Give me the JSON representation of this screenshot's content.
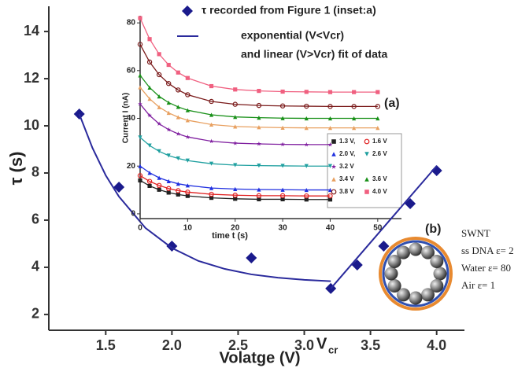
{
  "chart_data": {
    "type": "scatter",
    "x_label": "Volatge (V)",
    "y_label": "τ (s)",
    "xlim": [
      1.07,
      4.21
    ],
    "ylim": [
      1.33,
      15.07
    ],
    "xticks": [
      1.5,
      {
        "value": 2,
        "label": "2.0"
      },
      2.5,
      {
        "value": 3,
        "label": "3.0"
      },
      3.5,
      {
        "value": 4,
        "label": "4.0"
      }
    ],
    "yticks": [
      2,
      4,
      6,
      8,
      10,
      12,
      14
    ],
    "series": [
      {
        "name": "τ recorded from Figure 1 (inset:a)",
        "color": "#1a1a8c",
        "marker": "diamond",
        "x": [
          1.3,
          1.6,
          2.0,
          2.6,
          3.2,
          3.4,
          3.6,
          3.8,
          4.0
        ],
        "values": [
          10.5,
          7.4,
          4.9,
          4.4,
          3.1,
          4.1,
          4.9,
          6.7,
          8.1
        ]
      },
      {
        "name": "exponential (V<Vcr)",
        "color": "#2a2a9c",
        "marker": "line",
        "x": [
          1.3,
          1.4,
          1.5,
          1.6,
          1.8,
          2.0,
          2.2,
          2.4,
          2.6,
          2.8,
          3.0,
          3.2,
          3.2,
          3.2,
          4.0
        ],
        "values": [
          10.5,
          9.06,
          7.9,
          7.0,
          5.67,
          4.82,
          4.27,
          3.93,
          3.7,
          3.56,
          3.47,
          3.41,
          null,
          3.1,
          8.3
        ]
      }
    ],
    "legend_note": "and linear (V>Vcr) fit of data",
    "vcr_label": "V",
    "vcr_sub": "cr",
    "inset": {
      "type": "line",
      "label": "(a)",
      "x_label": "time t (s)",
      "y_label": "Current I (nA)",
      "xlim": [
        0,
        55
      ],
      "ylim": [
        -2,
        83
      ],
      "xticks": [
        0,
        10,
        20,
        30,
        40,
        50
      ],
      "yticks": [
        0,
        20,
        40,
        60,
        80
      ],
      "x": [
        0,
        2,
        4,
        6,
        8,
        10,
        15,
        20,
        25,
        30,
        35,
        40,
        45,
        50
      ],
      "series": [
        {
          "name": "1.3 V,",
          "color": "#222222",
          "marker": "square",
          "values": [
            14,
            11.7,
            10.1,
            8.9,
            8.1,
            7.5,
            6.7,
            6.3,
            6.1,
            6.1,
            6,
            6,
            null,
            null
          ]
        },
        {
          "name": "1.6 V",
          "color": "#e02020",
          "marker": "circle",
          "values": [
            16,
            13.6,
            11.9,
            10.6,
            9.7,
            9.1,
            8.2,
            7.8,
            7.6,
            7.6,
            7.5,
            7.5,
            null,
            null
          ]
        },
        {
          "name": "2.0 V,",
          "color": "#2030e0",
          "marker": "triangle",
          "values": [
            20,
            17.2,
            15.1,
            13.7,
            12.6,
            11.9,
            10.8,
            10.4,
            10.2,
            10.1,
            10,
            10,
            null,
            null
          ]
        },
        {
          "name": "2.6 V",
          "color": "#20a0a0",
          "marker": "dtriangle",
          "values": [
            32,
            28.6,
            26.2,
            24.4,
            23.2,
            22.3,
            21,
            20.4,
            20.2,
            20.1,
            20,
            20,
            null,
            null
          ]
        },
        {
          "name": "3.2 V",
          "color": "#8020a0",
          "marker": "star",
          "values": [
            46,
            41.2,
            37.7,
            35.3,
            33.5,
            32.2,
            30.4,
            29.6,
            29.3,
            29.1,
            29,
            29,
            null,
            null
          ]
        },
        {
          "name": "3.4 V",
          "color": "#e8a060",
          "marker": "triangle",
          "values": [
            53,
            48.2,
            44.7,
            42.3,
            40.5,
            39.2,
            37.4,
            36.6,
            36.3,
            36.1,
            36,
            36,
            36,
            36
          ]
        },
        {
          "name": "3.6 V",
          "color": "#189018",
          "marker": "triangle",
          "values": [
            58,
            52.9,
            49.2,
            46.6,
            44.8,
            43.4,
            41.5,
            40.6,
            40.3,
            40.1,
            40,
            40,
            40,
            40
          ]
        },
        {
          "name": "3.8 V",
          "color": "#7a1a1a",
          "marker": "circle",
          "values": [
            71,
            63.6,
            58.3,
            54.6,
            51.9,
            49.9,
            47.1,
            45.9,
            45.4,
            45.2,
            45.1,
            45,
            45,
            45
          ]
        },
        {
          "name": "4.0 V",
          "color": "#f06080",
          "marker": "square",
          "values": [
            82,
            73.2,
            66.9,
            62.4,
            59.2,
            56.9,
            53.5,
            52.1,
            51.5,
            51.2,
            51.1,
            51,
            51,
            51
          ]
        }
      ]
    },
    "diagram": {
      "label": "(b)",
      "lines": [
        "SWNT",
        "ss DNA ε= 2",
        "Water  ε= 80",
        "Air      ε= 1"
      ]
    }
  }
}
